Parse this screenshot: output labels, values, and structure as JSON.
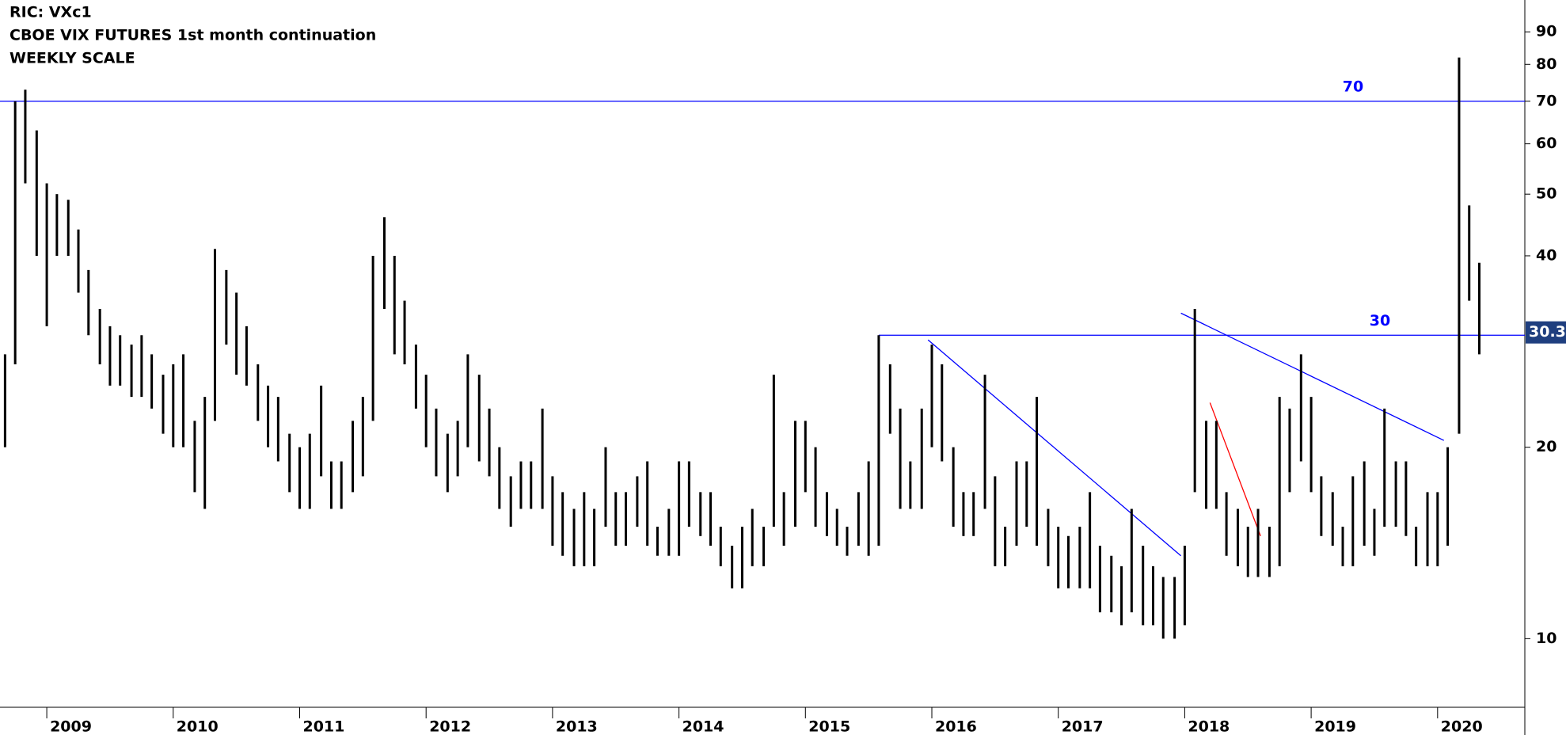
{
  "chart_data": {
    "type": "hilo",
    "title_lines": [
      "RIC: VXc1",
      "CBOE VIX FUTURES 1st month continuation",
      "WEEKLY SCALE"
    ],
    "color": "#000000",
    "log_scale": true,
    "x": [
      2008.67,
      2008.75,
      2008.83,
      2008.92,
      2009.0,
      2009.08,
      2009.17,
      2009.25,
      2009.33,
      2009.42,
      2009.5,
      2009.58,
      2009.67,
      2009.75,
      2009.83,
      2009.92,
      2010.0,
      2010.08,
      2010.17,
      2010.25,
      2010.33,
      2010.42,
      2010.5,
      2010.58,
      2010.67,
      2010.75,
      2010.83,
      2010.92,
      2011.0,
      2011.08,
      2011.17,
      2011.25,
      2011.33,
      2011.42,
      2011.5,
      2011.58,
      2011.67,
      2011.75,
      2011.83,
      2011.92,
      2012.0,
      2012.08,
      2012.17,
      2012.25,
      2012.33,
      2012.42,
      2012.5,
      2012.58,
      2012.67,
      2012.75,
      2012.83,
      2012.92,
      2013.0,
      2013.08,
      2013.17,
      2013.25,
      2013.33,
      2013.42,
      2013.5,
      2013.58,
      2013.67,
      2013.75,
      2013.83,
      2013.92,
      2014.0,
      2014.08,
      2014.17,
      2014.25,
      2014.33,
      2014.42,
      2014.5,
      2014.58,
      2014.67,
      2014.75,
      2014.83,
      2014.92,
      2015.0,
      2015.08,
      2015.17,
      2015.25,
      2015.33,
      2015.42,
      2015.5,
      2015.58,
      2015.67,
      2015.75,
      2015.83,
      2015.92,
      2016.0,
      2016.08,
      2016.17,
      2016.25,
      2016.33,
      2016.42,
      2016.5,
      2016.58,
      2016.67,
      2016.75,
      2016.83,
      2016.92,
      2017.0,
      2017.08,
      2017.17,
      2017.25,
      2017.33,
      2017.42,
      2017.5,
      2017.58,
      2017.67,
      2017.75,
      2017.83,
      2017.92,
      2018.0,
      2018.08,
      2018.17,
      2018.25,
      2018.33,
      2018.42,
      2018.5,
      2018.58,
      2018.67,
      2018.75,
      2018.83,
      2018.92,
      2019.0,
      2019.08,
      2019.17,
      2019.25,
      2019.33,
      2019.42,
      2019.5,
      2019.58,
      2019.67,
      2019.75,
      2019.83,
      2019.92,
      2020.0,
      2020.08,
      2020.17,
      2020.25,
      2020.33
    ],
    "high": [
      28,
      70,
      73,
      63,
      52,
      50,
      49,
      44,
      38,
      33,
      31,
      30,
      29,
      30,
      28,
      26,
      27,
      28,
      22,
      24,
      41,
      38,
      35,
      31,
      27,
      25,
      24,
      21,
      20,
      21,
      25,
      19,
      19,
      22,
      24,
      40,
      46,
      40,
      34,
      29,
      26,
      23,
      21,
      22,
      28,
      26,
      23,
      20,
      18,
      19,
      19,
      23,
      18,
      17,
      16,
      17,
      16,
      20,
      17,
      17,
      18,
      19,
      15,
      16,
      19,
      19,
      17,
      17,
      15,
      14,
      15,
      16,
      15,
      26,
      17,
      22,
      22,
      20,
      17,
      16,
      15,
      17,
      19,
      30,
      27,
      23,
      19,
      23,
      29,
      27,
      20,
      17,
      17,
      26,
      18,
      15,
      19,
      19,
      24,
      16,
      15,
      14.5,
      15,
      17,
      14,
      13.5,
      13,
      16,
      14,
      13,
      12.5,
      12.5,
      14,
      33,
      22,
      22,
      17,
      16,
      15,
      16,
      15,
      24,
      23,
      28,
      24,
      18,
      17,
      15,
      18,
      19,
      16,
      23,
      19,
      19,
      15,
      17,
      17,
      20,
      82,
      48,
      39
    ],
    "low": [
      20,
      27,
      52,
      40,
      31,
      40,
      40,
      35,
      30,
      27,
      25,
      25,
      24,
      24,
      23,
      21,
      20,
      20,
      17,
      16,
      22,
      29,
      26,
      25,
      22,
      20,
      19,
      17,
      16,
      16,
      18,
      16,
      16,
      17,
      18,
      22,
      33,
      28,
      27,
      23,
      20,
      18,
      17,
      18,
      20,
      19,
      18,
      16,
      15,
      16,
      16,
      16,
      14,
      13.5,
      13,
      13,
      13,
      15,
      14,
      14,
      15,
      14,
      13.5,
      13.5,
      13.5,
      15,
      14.5,
      14,
      13,
      12,
      12,
      13,
      13,
      15,
      14,
      15,
      17,
      15,
      14.5,
      14,
      13.5,
      14,
      13.5,
      14,
      21,
      16,
      16,
      16,
      20,
      19,
      15,
      14.5,
      14.5,
      16,
      13,
      13,
      14,
      15,
      14,
      13,
      12,
      12,
      12,
      12,
      11,
      11,
      10.5,
      11,
      10.5,
      10.5,
      10,
      10,
      10.5,
      17,
      16,
      16,
      13.5,
      13,
      12.5,
      12.5,
      12.5,
      13,
      17,
      19,
      17,
      14.5,
      14,
      13,
      13,
      14,
      13.5,
      15,
      15,
      14.5,
      13,
      13,
      13,
      14,
      21,
      34,
      28
    ],
    "xlim": [
      2008.63,
      2020.69
    ],
    "xticks": [
      2009,
      2010,
      2011,
      2012,
      2013,
      2014,
      2015,
      2016,
      2017,
      2018,
      2019,
      2020
    ],
    "ylim": [
      7.8,
      101
    ],
    "yticks": [
      10,
      20,
      40,
      50,
      60,
      70,
      80,
      90
    ],
    "last": 30.31,
    "last_color": "#1f3f7f",
    "hlines": [
      {
        "value": 70,
        "label": "70",
        "from": 2008.63,
        "color": "#0000ff"
      },
      {
        "value": 30,
        "label": "30",
        "from": 2015.58,
        "color": "#0000ff"
      }
    ],
    "trendlines": [
      {
        "x": [
          2015.97,
          2017.97
        ],
        "y": [
          29.5,
          13.5
        ],
        "color": "#0000ff"
      },
      {
        "x": [
          2017.97,
          2020.05
        ],
        "y": [
          32.5,
          20.5
        ],
        "color": "#0000ff"
      },
      {
        "x": [
          2018.2,
          2018.6
        ],
        "y": [
          23.5,
          14.5
        ],
        "color": "#ff0000"
      }
    ]
  }
}
